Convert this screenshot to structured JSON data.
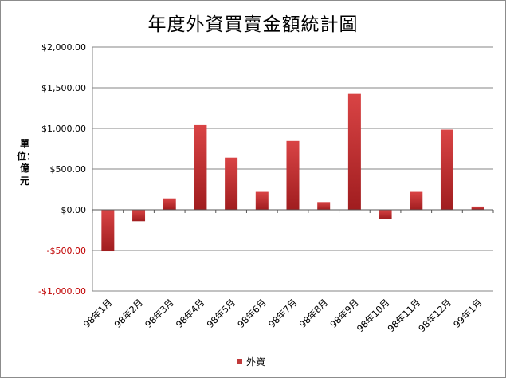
{
  "colors": {
    "bar_top": "#d94445",
    "bar_bottom": "#a01d1f",
    "negative_tick": "#c00000",
    "grid": "#868686"
  },
  "chart_data": {
    "type": "bar",
    "title": "年度外資買賣金額統計圖",
    "ylabel": "單位：億元",
    "xlabel": "",
    "categories": [
      "98年1月",
      "98年2月",
      "98年3月",
      "98年4月",
      "98年5月",
      "98年6月",
      "98年7月",
      "98年8月",
      "98年9月",
      "98年10月",
      "98年11月",
      "98年12月",
      "99年1月"
    ],
    "series": [
      {
        "name": "外資",
        "values": [
          -510,
          -140,
          140,
          1040,
          640,
          220,
          845,
          95,
          1425,
          -110,
          220,
          985,
          40
        ]
      }
    ],
    "ylim": [
      -1000,
      2000
    ],
    "yticks": [
      {
        "value": 2000,
        "label": "$2,000.00"
      },
      {
        "value": 1500,
        "label": "$1,500.00"
      },
      {
        "value": 1000,
        "label": "$1,000.00"
      },
      {
        "value": 500,
        "label": "$500.00"
      },
      {
        "value": 0,
        "label": "$0.00"
      },
      {
        "value": -500,
        "label": "-$500.00"
      },
      {
        "value": -1000,
        "label": "-$1,000.00"
      }
    ],
    "grid": true,
    "legend": "bottom"
  }
}
